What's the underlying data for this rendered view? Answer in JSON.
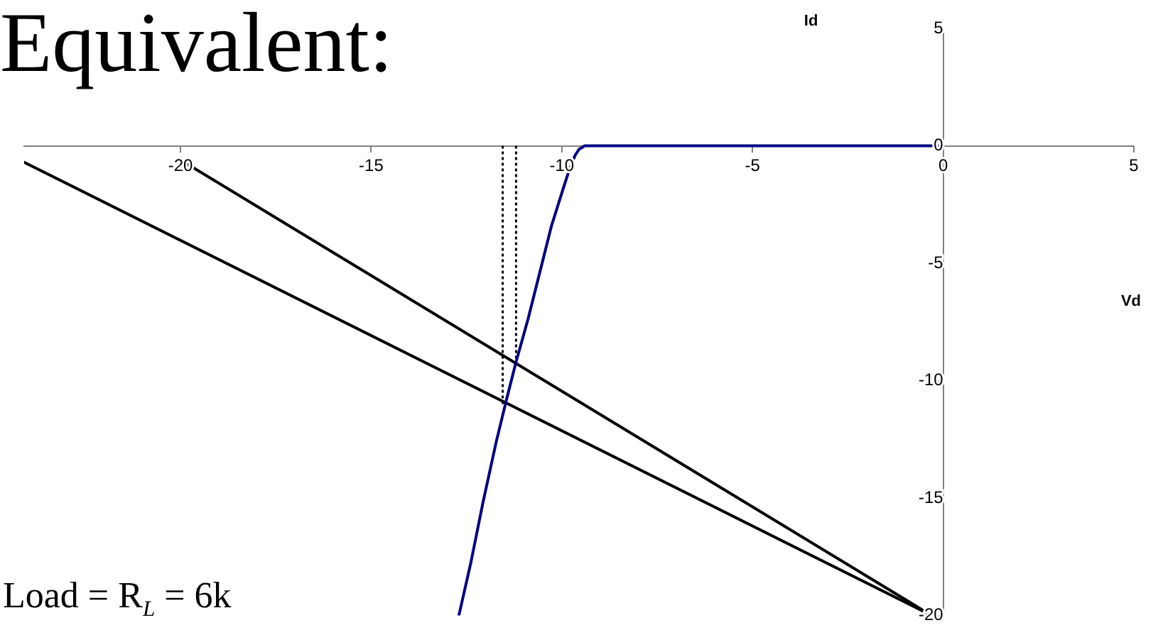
{
  "chart_data": {
    "type": "line",
    "title": "Equivalent:",
    "xlabel": "Vd",
    "ylabel": "Id",
    "annotations": [
      "Load = R$_{L}$ = 6k"
    ],
    "xlim": [
      -24.1,
      5
    ],
    "xticks": [
      -20,
      -15,
      -10,
      -5,
      0,
      5
    ],
    "ylim": [
      -20,
      5
    ],
    "yticks": [
      -20,
      -15,
      -10,
      -5,
      0,
      5
    ],
    "marker": "none",
    "series": [
      {
        "color": "#000080",
        "x": [
          0,
          -9.4,
          -9.55,
          -9.65,
          -9.8,
          -9.96,
          -10.27,
          -10.58,
          -10.89,
          -11.2,
          -11.45,
          -11.72,
          -12.07,
          -12.38,
          -12.7
        ],
        "values": [
          0,
          0,
          -0.15,
          -0.4,
          -1.0,
          -1.8,
          -3.4,
          -5.4,
          -7.4,
          -9.2,
          -10.8,
          -12.6,
          -15.2,
          -17.7,
          -20
        ]
      },
      {
        "color": "#000000",
        "x": [
          -19.9,
          -0.3
        ],
        "values": [
          -0.7,
          -20
        ]
      },
      {
        "color": "#000000",
        "x": [
          -24.1,
          -0.3
        ],
        "values": [
          -0.7,
          -20
        ]
      },
      {
        "color": "#000000",
        "x": [
          -11.2,
          -11.2
        ],
        "values": [
          0,
          -9.3
        ],
        "line_style": "dotted"
      },
      {
        "color": "#000000",
        "x": [
          -11.55,
          -11.55
        ],
        "values": [
          0,
          -11.1
        ],
        "line_style": "dotted"
      }
    ]
  }
}
